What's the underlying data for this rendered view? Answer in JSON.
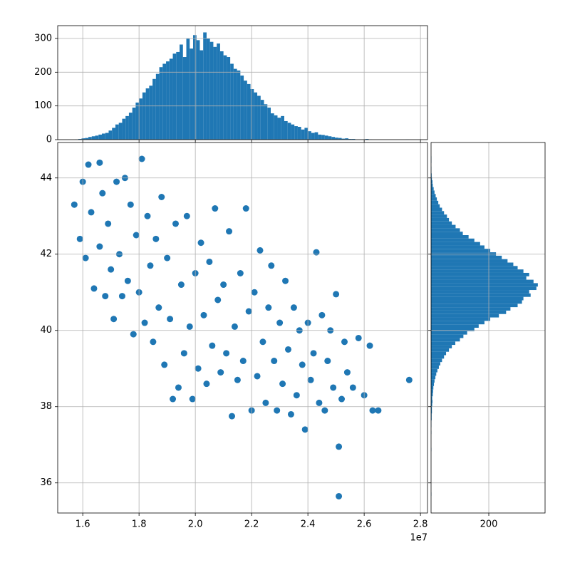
{
  "chart_data": [
    {
      "type": "histogram",
      "orientation": "vertical",
      "color": "#1f77b4",
      "grid": true,
      "xtick_labels": false,
      "xlim": [
        15110000,
        28250000
      ],
      "ylim": [
        0,
        338
      ],
      "xticks": [
        16000000,
        18000000,
        20000000,
        22000000,
        24000000,
        26000000,
        28000000
      ],
      "yticks": [
        0,
        100,
        200,
        300
      ],
      "bins": [
        15720000,
        15840000,
        15960000,
        16080000,
        16200000,
        16320000,
        16440000,
        16560000,
        16680000,
        16800000,
        16920000,
        17040000,
        17160000,
        17280000,
        17400000,
        17520000,
        17640000,
        17760000,
        17880000,
        18000000,
        18120000,
        18240000,
        18360000,
        18480000,
        18600000,
        18720000,
        18840000,
        18960000,
        19080000,
        19200000,
        19320000,
        19440000,
        19560000,
        19680000,
        19800000,
        19920000,
        20040000,
        20160000,
        20280000,
        20400000,
        20520000,
        20640000,
        20760000,
        20880000,
        21000000,
        21120000,
        21240000,
        21360000,
        21480000,
        21600000,
        21720000,
        21840000,
        21960000,
        22080000,
        22200000,
        22320000,
        22440000,
        22560000,
        22680000,
        22800000,
        22920000,
        23040000,
        23160000,
        23280000,
        23400000,
        23520000,
        23640000,
        23760000,
        23880000,
        24000000,
        24120000,
        24240000,
        24360000,
        24480000,
        24600000,
        24720000,
        24840000,
        24960000,
        25080000,
        25200000,
        25320000,
        25440000,
        25560000,
        25680000,
        25800000,
        25920000,
        26040000,
        26160000,
        26280000,
        26400000,
        26520000,
        26640000,
        26760000,
        26880000,
        27000000,
        27120000,
        27240000,
        27360000,
        27480000,
        27600000,
        27720000
      ],
      "values": [
        1,
        2,
        4,
        5,
        8,
        10,
        12,
        15,
        18,
        20,
        27,
        35,
        45,
        50,
        62,
        70,
        80,
        95,
        110,
        122,
        140,
        152,
        160,
        180,
        195,
        215,
        225,
        232,
        240,
        255,
        260,
        282,
        245,
        300,
        270,
        310,
        295,
        265,
        318,
        300,
        290,
        275,
        285,
        262,
        250,
        245,
        225,
        210,
        205,
        190,
        175,
        165,
        150,
        140,
        130,
        118,
        105,
        95,
        78,
        72,
        65,
        70,
        55,
        50,
        45,
        40,
        38,
        30,
        35,
        25,
        20,
        22,
        15,
        14,
        12,
        10,
        8,
        6,
        5,
        3,
        4,
        2,
        2,
        1,
        1,
        1,
        2,
        1,
        0,
        0,
        0,
        0,
        0,
        0,
        0,
        0,
        0,
        0,
        1,
        0
      ]
    },
    {
      "type": "scatter",
      "color": "#1f77b4",
      "grid": true,
      "x_offset_label": "1e7",
      "xlim": [
        15110000,
        28250000
      ],
      "ylim": [
        35.21,
        44.93
      ],
      "xticks": [
        {
          "value": 16000000,
          "label": "1.6"
        },
        {
          "value": 18000000,
          "label": "1.8"
        },
        {
          "value": 20000000,
          "label": "2.0"
        },
        {
          "value": 22000000,
          "label": "2.2"
        },
        {
          "value": 24000000,
          "label": "2.4"
        },
        {
          "value": 26000000,
          "label": "2.6"
        },
        {
          "value": 28000000,
          "label": "2.8"
        }
      ],
      "yticks": [
        36,
        38,
        40,
        42,
        44
      ],
      "x": [
        15700000,
        15900000,
        16000000,
        16100000,
        16200000,
        16300000,
        16400000,
        16600000,
        16600000,
        16700000,
        16800000,
        16900000,
        17000000,
        17100000,
        17200000,
        17300000,
        17400000,
        17500000,
        17600000,
        17700000,
        17800000,
        17900000,
        18000000,
        18100000,
        18200000,
        18300000,
        18400000,
        18500000,
        18600000,
        18700000,
        18800000,
        18900000,
        19000000,
        19100000,
        19200000,
        19300000,
        19400000,
        19500000,
        19600000,
        19700000,
        19800000,
        19900000,
        20000000,
        20100000,
        20200000,
        20300000,
        20400000,
        20500000,
        20600000,
        20700000,
        20800000,
        20900000,
        21000000,
        21100000,
        21200000,
        21300000,
        21400000,
        21500000,
        21600000,
        21700000,
        21800000,
        21900000,
        22000000,
        22100000,
        22200000,
        22300000,
        22400000,
        22500000,
        22600000,
        22700000,
        22800000,
        22900000,
        23000000,
        23100000,
        23200000,
        23300000,
        23400000,
        23500000,
        23600000,
        23700000,
        23800000,
        23900000,
        24000000,
        24100000,
        24200000,
        24300000,
        24400000,
        24500000,
        24600000,
        24700000,
        24800000,
        24900000,
        25000000,
        25100000,
        25100000,
        25200000,
        25300000,
        25400000,
        25600000,
        25800000,
        26000000,
        26200000,
        26300000,
        26500000,
        27600000
      ],
      "y": [
        43.3,
        42.4,
        43.9,
        41.9,
        44.35,
        43.1,
        41.1,
        44.4,
        42.2,
        43.6,
        40.9,
        42.8,
        41.6,
        40.3,
        43.9,
        42.0,
        40.9,
        44.0,
        41.3,
        43.3,
        39.9,
        42.5,
        41.0,
        44.5,
        40.2,
        43.0,
        41.7,
        39.7,
        42.4,
        40.6,
        43.5,
        39.1,
        41.9,
        40.3,
        38.2,
        42.8,
        38.5,
        41.2,
        39.4,
        43.0,
        40.1,
        38.2,
        41.5,
        39.0,
        42.3,
        40.4,
        38.6,
        41.8,
        39.6,
        43.2,
        40.8,
        38.9,
        41.2,
        39.4,
        42.6,
        37.75,
        40.1,
        38.7,
        41.5,
        39.2,
        43.2,
        40.5,
        37.9,
        41.0,
        38.8,
        42.1,
        39.7,
        38.1,
        40.6,
        41.7,
        39.2,
        37.9,
        40.2,
        38.6,
        41.3,
        39.5,
        37.8,
        40.6,
        38.3,
        40.0,
        39.1,
        37.4,
        40.2,
        38.7,
        39.4,
        42.05,
        38.1,
        40.4,
        37.9,
        39.2,
        40.0,
        38.5,
        40.95,
        35.65,
        36.95,
        38.2,
        39.7,
        38.9,
        38.5,
        39.8,
        38.3,
        39.6,
        37.9,
        37.9,
        38.7
      ]
    },
    {
      "type": "histogram",
      "orientation": "horizontal",
      "color": "#1f77b4",
      "grid": true,
      "ytick_labels": false,
      "xlim": [
        0,
        395
      ],
      "ylim": [
        35.21,
        44.93
      ],
      "xticks": [
        200
      ],
      "yticks": [
        36,
        38,
        40,
        42,
        44
      ],
      "bins": [
        35.66,
        35.75,
        35.84,
        35.93,
        36.02,
        36.11,
        36.2,
        36.29,
        36.38,
        36.47,
        36.56,
        36.65,
        36.74,
        36.83,
        36.92,
        37.01,
        37.1,
        37.19,
        37.28,
        37.37,
        37.46,
        37.55,
        37.64,
        37.73,
        37.82,
        37.91,
        38,
        38.09,
        38.18,
        38.27,
        38.36,
        38.45,
        38.54,
        38.63,
        38.72,
        38.81,
        38.9,
        38.99,
        39.08,
        39.17,
        39.26,
        39.35,
        39.44,
        39.53,
        39.62,
        39.71,
        39.8,
        39.89,
        39.98,
        40.07,
        40.16,
        40.25,
        40.34,
        40.43,
        40.52,
        40.61,
        40.7,
        40.79,
        40.88,
        40.97,
        41.06,
        41.15,
        41.24,
        41.33,
        41.42,
        41.51,
        41.6,
        41.69,
        41.78,
        41.87,
        41.96,
        42.05,
        42.14,
        42.23,
        42.32,
        42.41,
        42.5,
        42.59,
        42.68,
        42.77,
        42.86,
        42.95,
        43.04,
        43.13,
        43.22,
        43.31,
        43.4,
        43.49,
        43.58,
        43.67,
        43.76,
        43.85,
        43.94,
        44.03,
        44.12,
        44.21,
        44.3,
        44.39,
        44.48,
        44.57,
        44.66
      ],
      "values": [
        1,
        0,
        0,
        0,
        0,
        0,
        0,
        0,
        0,
        0,
        0,
        0,
        0,
        1,
        0,
        0,
        0,
        0,
        1,
        0,
        1,
        1,
        2,
        2,
        3,
        3,
        4,
        5,
        4,
        6,
        7,
        8,
        10,
        12,
        15,
        18,
        22,
        27,
        32,
        38,
        45,
        52,
        62,
        72,
        84,
        100,
        112,
        125,
        150,
        165,
        185,
        205,
        235,
        260,
        275,
        300,
        315,
        320,
        345,
        340,
        365,
        370,
        355,
        330,
        340,
        320,
        300,
        285,
        265,
        245,
        225,
        205,
        185,
        170,
        150,
        130,
        110,
        100,
        85,
        72,
        62,
        55,
        45,
        38,
        30,
        25,
        20,
        16,
        12,
        9,
        6,
        5,
        3,
        2,
        1,
        1,
        0,
        1,
        1,
        0
      ]
    }
  ]
}
